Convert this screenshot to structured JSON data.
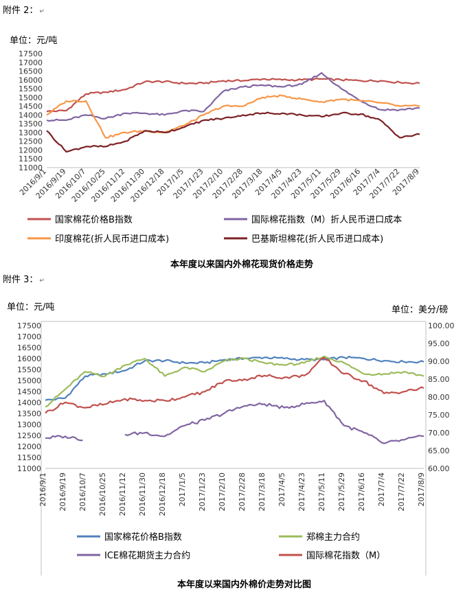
{
  "annex2": "附件 2：",
  "annex3": "附件 3：",
  "return_mark": "↵",
  "chart1": {
    "unit": "单位：元/吨",
    "caption": "本年度以来国内外棉花现货价格走势",
    "xlabels": [
      "2016/9/1",
      "2016/9/19",
      "2016/10/7",
      "2016/10/25",
      "2016/11/12",
      "2016/11/30",
      "2016/12/18",
      "2017/1/5",
      "2017/1/23",
      "2017/2/10",
      "2017/2/28",
      "2017/3/18",
      "2017/4/5",
      "2017/4/23",
      "2017/5/11",
      "2017/5/29",
      "2017/6/16",
      "2017/7/4",
      "2017/7/22",
      "2017/8/9"
    ],
    "yticks": [
      11000,
      11500,
      12000,
      12500,
      13000,
      13500,
      14000,
      14500,
      15000,
      15500,
      16000,
      16500,
      17000,
      17500
    ]
  },
  "chart2": {
    "unit_left": "单位：元/吨",
    "unit_right": "单位：美分/磅",
    "caption": "本年度以来国内外棉价走势对比图",
    "xlabels": [
      "2016/9/1",
      "2016/9/19",
      "2016/10/7",
      "2016/10/25",
      "2016/11/12",
      "2016/11/30",
      "2016/12/18",
      "2017/1/5",
      "2017/1/23",
      "2017/2/10",
      "2017/2/28",
      "2017/3/18",
      "2017/4/5",
      "2017/4/23",
      "2017/5/11",
      "2017/5/29",
      "2017/6/16",
      "2017/7/4",
      "2017/7/22",
      "2017/8/9"
    ],
    "yticks_left": [
      11000,
      11500,
      12000,
      12500,
      13000,
      13500,
      14000,
      14500,
      15000,
      15500,
      16000,
      16500,
      17000,
      17500
    ],
    "yticks_right": [
      "60.00",
      "65.00",
      "70.00",
      "75.00",
      "80.00",
      "85.00",
      "90.00",
      "95.00",
      "100.00"
    ]
  },
  "chart_data": [
    {
      "type": "line",
      "title": "本年度以来国内外棉花现货价格走势",
      "ylabel": "单位：元/吨",
      "ylim": [
        11000,
        17500
      ],
      "x": [
        "2016/9/1",
        "2016/9/19",
        "2016/10/7",
        "2016/10/25",
        "2016/11/12",
        "2016/11/30",
        "2016/12/18",
        "2017/1/5",
        "2017/1/23",
        "2017/2/10",
        "2017/2/28",
        "2017/3/18",
        "2017/4/5",
        "2017/4/23",
        "2017/5/11",
        "2017/5/29",
        "2017/6/16",
        "2017/7/4",
        "2017/7/22",
        "2017/8/9"
      ],
      "legend_position": "bottom",
      "grid": false,
      "series": [
        {
          "name": "国家棉花价格B指数",
          "color": "#c0504d",
          "values": [
            14200,
            14250,
            15200,
            15300,
            15450,
            15900,
            15900,
            15800,
            15800,
            15950,
            15950,
            16050,
            16000,
            16000,
            16050,
            16000,
            15950,
            15950,
            15850,
            15800
          ]
        },
        {
          "name": "国际棉花指数（M）折人民币进口成本",
          "color": "#8064a2",
          "values": [
            13700,
            13700,
            14000,
            13800,
            14100,
            14100,
            14000,
            14250,
            14200,
            15350,
            15600,
            15700,
            15600,
            15750,
            16400,
            15500,
            14800,
            14300,
            14300,
            14400
          ]
        },
        {
          "name": "印度棉花(折人民币进口成本)",
          "color": "#f79646",
          "values": [
            14000,
            14800,
            14800,
            12700,
            13000,
            13100,
            13000,
            13400,
            14000,
            14500,
            14500,
            15000,
            15100,
            14900,
            14750,
            14900,
            14800,
            14700,
            14500,
            14500
          ]
        },
        {
          "name": "巴基斯坦棉花(折人民币进口成本)",
          "color": "#7b2024",
          "values": [
            13100,
            11900,
            12200,
            12200,
            12500,
            13100,
            13000,
            13300,
            13700,
            13800,
            14000,
            14100,
            14100,
            14000,
            13900,
            14100,
            14050,
            13700,
            12700,
            12900
          ]
        }
      ]
    },
    {
      "type": "line",
      "title": "本年度以来国内外棉价走势对比图",
      "ylabel": "单位：元/吨",
      "y2label": "单位：美分/磅",
      "ylim": [
        11000,
        17500
      ],
      "y2lim": [
        60,
        100
      ],
      "x": [
        "2016/9/1",
        "2016/9/19",
        "2016/10/7",
        "2016/10/25",
        "2016/11/12",
        "2016/11/30",
        "2016/12/18",
        "2017/1/5",
        "2017/1/23",
        "2017/2/10",
        "2017/2/28",
        "2017/3/18",
        "2017/4/5",
        "2017/4/23",
        "2017/5/11",
        "2017/5/29",
        "2017/6/16",
        "2017/7/4",
        "2017/7/22",
        "2017/8/9"
      ],
      "legend_position": "bottom",
      "grid": false,
      "series": [
        {
          "name": "国家棉花价格B指数",
          "color": "#4f81bd",
          "axis": "left",
          "values": [
            14100,
            14200,
            15200,
            15300,
            15450,
            15900,
            15900,
            15800,
            15800,
            15950,
            16000,
            16050,
            16000,
            15950,
            15950,
            16050,
            16000,
            15900,
            15850,
            15850
          ]
        },
        {
          "name": "郑棉主力合约",
          "color": "#9bbb59",
          "axis": "left",
          "values": [
            13800,
            14600,
            15400,
            15200,
            15700,
            16000,
            15200,
            15600,
            15400,
            15900,
            16000,
            15800,
            15700,
            15800,
            16100,
            15800,
            15300,
            15300,
            15400,
            15200
          ]
        },
        {
          "name": "ICE棉花期货主力合约",
          "color": "#8064a2",
          "axis": "right",
          "values": [
            68.5,
            69.0,
            68.0,
            null,
            69.5,
            70.0,
            69.0,
            72.0,
            73.5,
            75.5,
            77.5,
            78.0,
            77.0,
            78.0,
            79.0,
            72.0,
            70.0,
            67.0,
            68.0,
            69.0
          ]
        },
        {
          "name": "国际棉花指数（M）",
          "color": "#c0504d",
          "axis": "right",
          "values": [
            75.5,
            78.5,
            77.0,
            78.0,
            79.5,
            79.0,
            79.0,
            80.0,
            81.5,
            84.5,
            85.0,
            86.0,
            85.5,
            86.0,
            91.0,
            86.5,
            84.5,
            81.0,
            81.5,
            82.5
          ]
        }
      ]
    }
  ]
}
